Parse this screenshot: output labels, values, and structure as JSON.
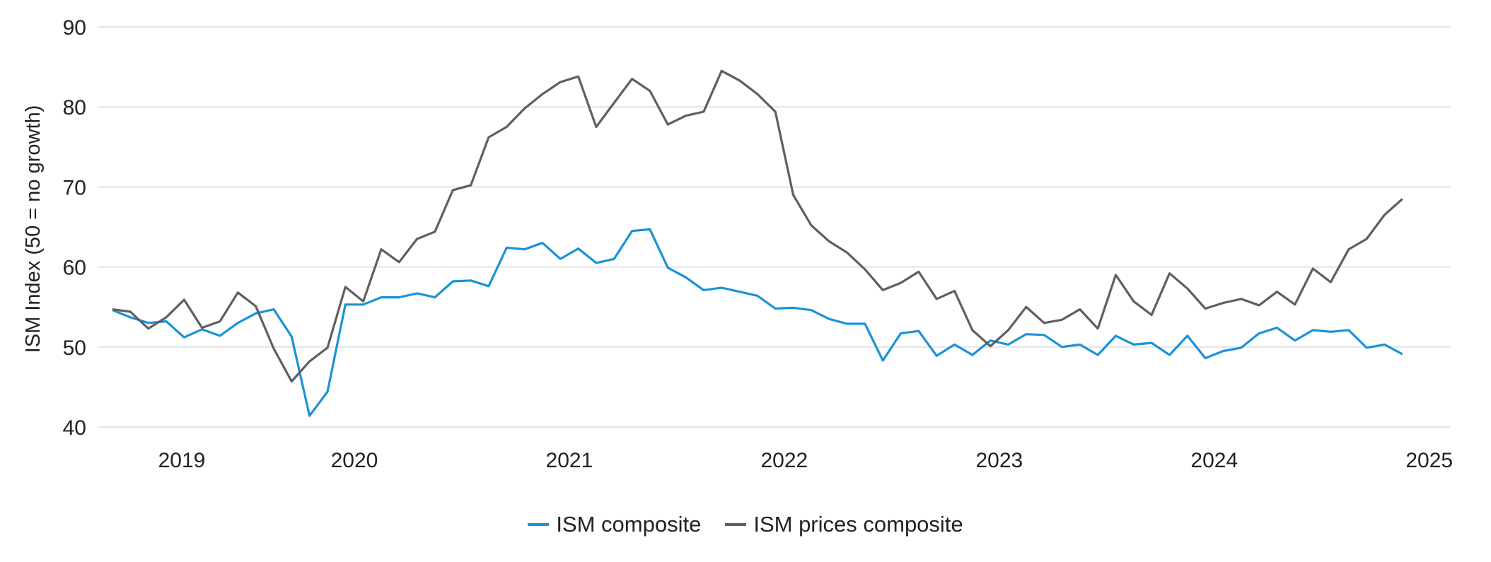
{
  "chart_data": {
    "type": "line",
    "title": "",
    "xlabel": "",
    "ylabel": "ISM Index (50 = no growth)",
    "ylim": [
      40,
      90
    ],
    "yticks": [
      "40",
      "50",
      "60",
      "70",
      "80",
      "90"
    ],
    "xticks": [
      "2019",
      "2020",
      "2021",
      "2022",
      "2023",
      "2024",
      "2025"
    ],
    "x_start": "2018-11",
    "x_end": "2024-11",
    "x_frequency": "monthly",
    "grid": "horizontal",
    "legend_position": "bottom",
    "series": [
      {
        "name": "ISM composite",
        "color": "#1a92d8",
        "values": [
          54.6,
          53.7,
          53.0,
          53.2,
          51.2,
          52.2,
          51.4,
          53.0,
          54.2,
          54.7,
          51.3,
          41.4,
          44.4,
          55.3,
          55.3,
          56.2,
          56.2,
          56.7,
          56.2,
          58.2,
          58.3,
          57.6,
          62.4,
          62.2,
          63.0,
          61.0,
          62.3,
          60.5,
          61.0,
          64.5,
          64.7,
          59.9,
          58.7,
          57.1,
          57.4,
          56.9,
          56.4,
          54.8,
          54.9,
          54.6,
          53.5,
          52.9,
          52.9,
          48.3,
          51.7,
          52.0,
          48.9,
          50.3,
          49.0,
          50.8,
          50.3,
          51.6,
          51.5,
          50.0,
          50.3,
          49.0,
          51.4,
          50.3,
          50.5,
          49.0,
          51.4,
          48.6,
          49.5,
          49.9,
          51.7,
          52.4,
          50.8,
          52.1,
          51.9,
          52.1,
          49.9,
          50.3,
          49.1
        ]
      },
      {
        "name": "ISM prices composite",
        "color": "#5f5f5f",
        "values": [
          54.7,
          54.4,
          52.3,
          53.7,
          55.9,
          52.4,
          53.2,
          56.8,
          55.1,
          49.8,
          45.7,
          48.2,
          49.9,
          57.5,
          55.7,
          62.2,
          60.6,
          63.5,
          64.4,
          69.6,
          70.2,
          76.2,
          77.5,
          79.8,
          81.6,
          83.1,
          83.8,
          77.5,
          80.5,
          83.5,
          82.0,
          77.8,
          78.9,
          79.4,
          84.5,
          83.3,
          81.6,
          79.4,
          69.0,
          65.2,
          63.2,
          61.8,
          59.7,
          57.1,
          58.0,
          59.4,
          56.0,
          57.0,
          52.1,
          50.1,
          52.1,
          55.0,
          53.0,
          53.4,
          54.7,
          52.3,
          59.0,
          55.7,
          54.0,
          59.2,
          57.3,
          54.8,
          55.5,
          56.0,
          55.2,
          56.9,
          55.3,
          59.8,
          58.1,
          62.2,
          63.5,
          66.5,
          68.5
        ]
      }
    ]
  }
}
